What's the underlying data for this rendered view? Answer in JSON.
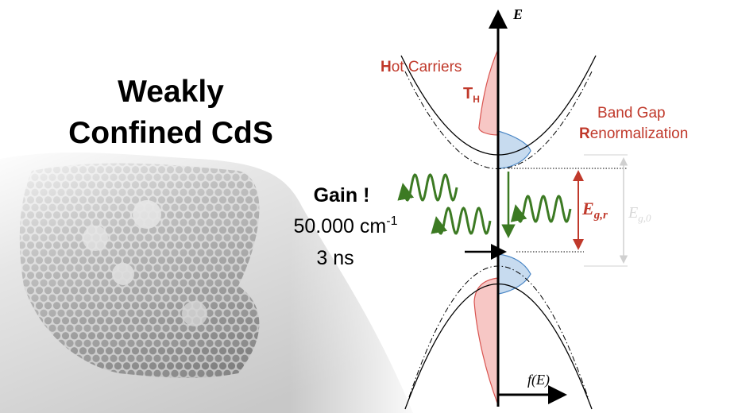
{
  "title": {
    "line1": "Weakly",
    "line2": "Confined CdS"
  },
  "gain": {
    "label": "Gain !",
    "coefficient": "50.000 cm",
    "exponent": "-1",
    "lifetime": "3 ns"
  },
  "axes": {
    "energy": "E",
    "occupation": "f(E)"
  },
  "labels": {
    "hot_carriers": "Hot Carriers",
    "temperature": {
      "symbol": "T",
      "subscript": "H"
    },
    "band_gap_line1": "Band Gap",
    "band_gap_line2": "Renormalization",
    "renormalized_gap": {
      "symbol": "E",
      "subscript": "g,r"
    },
    "bare_gap": {
      "symbol": "E",
      "subscript": "g,0"
    }
  }
}
